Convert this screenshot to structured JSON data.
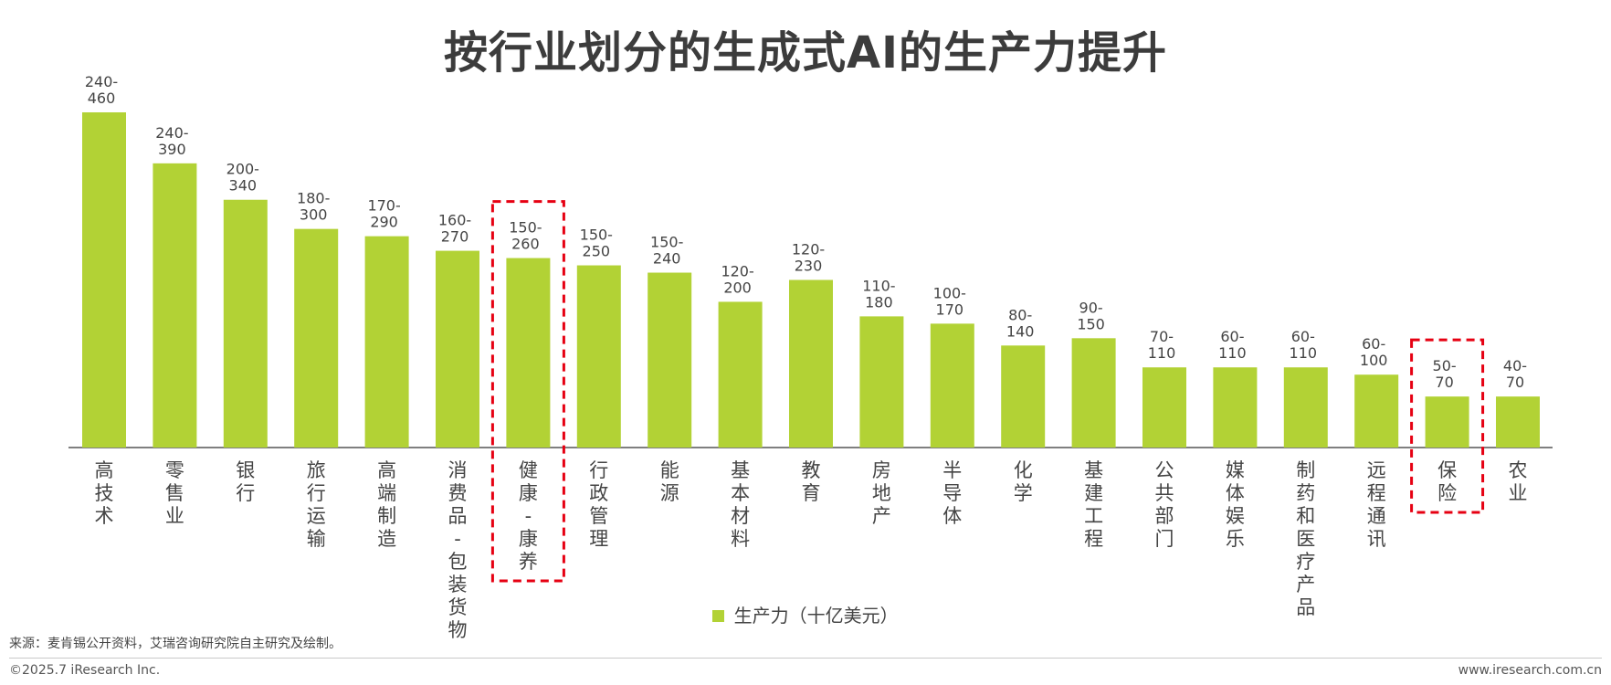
{
  "title": "按行业划分的生成式AI的生产力提升",
  "legend": {
    "label": "生产力（十亿美元）",
    "color": "#b2d235"
  },
  "highlight_color": "#e60012",
  "footer": {
    "source": "来源：麦肯锡公开资料，艾瑞咨询研究院自主研究及绘制。",
    "copyright": "©2025.7 iResearch Inc.",
    "website": "www.iresearch.com.cn"
  },
  "chart_data": {
    "type": "bar",
    "categories": [
      "高技术",
      "零售业",
      "银行",
      "旅行运输",
      "高端制造",
      "消费品-包装货物",
      "健康-康养",
      "行政管理",
      "能源",
      "基本材料",
      "教育",
      "房地产",
      "半导体",
      "化学",
      "基建工程",
      "公共部门",
      "媒体娱乐",
      "制药和医疗产品",
      "远程通讯",
      "保险",
      "农业"
    ],
    "series": [
      {
        "name": "生产力（十亿美元）",
        "values": [
          460,
          390,
          340,
          300,
          290,
          270,
          260,
          250,
          240,
          200,
          230,
          180,
          170,
          140,
          150,
          110,
          110,
          110,
          100,
          70,
          70
        ],
        "ranges": [
          "240-460",
          "240-390",
          "200-340",
          "180-300",
          "170-290",
          "160-270",
          "150-260",
          "150-250",
          "150-240",
          "120-200",
          "120-230",
          "110-180",
          "100-170",
          "80-140",
          "90-150",
          "70-110",
          "60-110",
          "60-110",
          "60-100",
          "50-70",
          "40-70"
        ]
      }
    ],
    "highlighted_categories": [
      "健康-康养",
      "保险"
    ],
    "ylim": [
      0,
      460
    ],
    "grid": false
  }
}
